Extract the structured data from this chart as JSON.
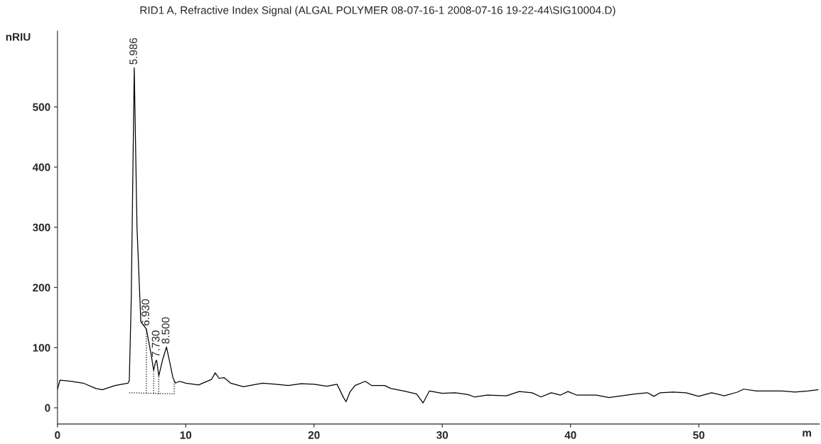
{
  "chart_data": {
    "type": "line",
    "title": "RID1 A, Refractive Index Signal (ALGAL POLYMER 08-07-16-1 2008-07-16 19-22-44\\SIG10004.D)",
    "ylabel": "nRIU",
    "xlabel": "m",
    "xlim": [
      0,
      59.4
    ],
    "xticks": [
      0,
      10,
      20,
      30,
      40,
      50
    ],
    "ylim": [
      -27,
      626
    ],
    "yticks": [
      0,
      100,
      200,
      300,
      400,
      500
    ],
    "grid": false,
    "legend": false,
    "series": [
      {
        "color": "#000000",
        "line_style": "solid",
        "x": [
          0,
          0.2,
          1,
          2,
          3,
          3.5,
          4.5,
          5.5,
          5.6,
          5.75,
          5.986,
          6.2,
          6.5,
          6.93,
          7.3,
          7.5,
          7.65,
          7.73,
          7.9,
          8.2,
          8.5,
          8.8,
          9.0,
          9.2,
          9.5,
          10,
          11,
          12,
          12.3,
          12.6,
          13,
          13.5,
          14.5,
          15,
          16,
          17,
          18,
          19,
          20,
          21,
          21.8,
          22.3,
          22.5,
          22.8,
          23.2,
          24,
          24.5,
          25.5,
          26,
          27,
          28,
          28.5,
          29,
          30,
          31,
          32,
          32.5,
          33.5,
          35,
          36,
          37,
          37.7,
          38.5,
          39.2,
          39.8,
          40.5,
          42,
          43,
          44,
          45,
          46,
          46.5,
          47,
          48,
          49,
          50,
          51,
          52,
          53,
          53.5,
          54.5,
          55.5,
          56.5,
          57.5,
          58.5,
          59.3
        ],
        "values": [
          31,
          46,
          44,
          41,
          32,
          30,
          37,
          41,
          45,
          178,
          565,
          300,
          143,
          131,
          89,
          62,
          77,
          79,
          53,
          80,
          101,
          71,
          50,
          41,
          44,
          41,
          38,
          47,
          58,
          49,
          50,
          41,
          35,
          37,
          41,
          39,
          37,
          40,
          39,
          36,
          39,
          17,
          10,
          26,
          37,
          44,
          37,
          37,
          32,
          28,
          23,
          8,
          28,
          24,
          25,
          22,
          18,
          21,
          20,
          27,
          25,
          18,
          25,
          21,
          27,
          21,
          21,
          17,
          20,
          23,
          25,
          19,
          25,
          26,
          25,
          19,
          25,
          20,
          26,
          31,
          28,
          28,
          28,
          26,
          28,
          30
        ]
      },
      {
        "color": "#000000",
        "line_style": "dotted",
        "x": [
          5.6,
          9.1
        ],
        "values": [
          25,
          23
        ]
      },
      {
        "color": "#000000",
        "line_style": "dotted",
        "x": [
          6.93,
          6.93
        ],
        "values": [
          24,
          131
        ]
      },
      {
        "color": "#000000",
        "line_style": "dotted",
        "x": [
          7.5,
          7.5
        ],
        "values": [
          24,
          62
        ]
      },
      {
        "color": "#000000",
        "line_style": "dotted",
        "x": [
          7.9,
          7.9
        ],
        "values": [
          23,
          53
        ]
      },
      {
        "color": "#000000",
        "line_style": "dotted",
        "x": [
          9.1,
          9.1
        ],
        "values": [
          23,
          45
        ]
      }
    ],
    "annotations": [
      {
        "text": "5.986",
        "x": 5.986,
        "y": 565
      },
      {
        "text": "6.930",
        "x": 6.93,
        "y": 131
      },
      {
        "text": "7.730",
        "x": 7.73,
        "y": 79
      },
      {
        "text": "8.500",
        "x": 8.5,
        "y": 101
      }
    ]
  }
}
